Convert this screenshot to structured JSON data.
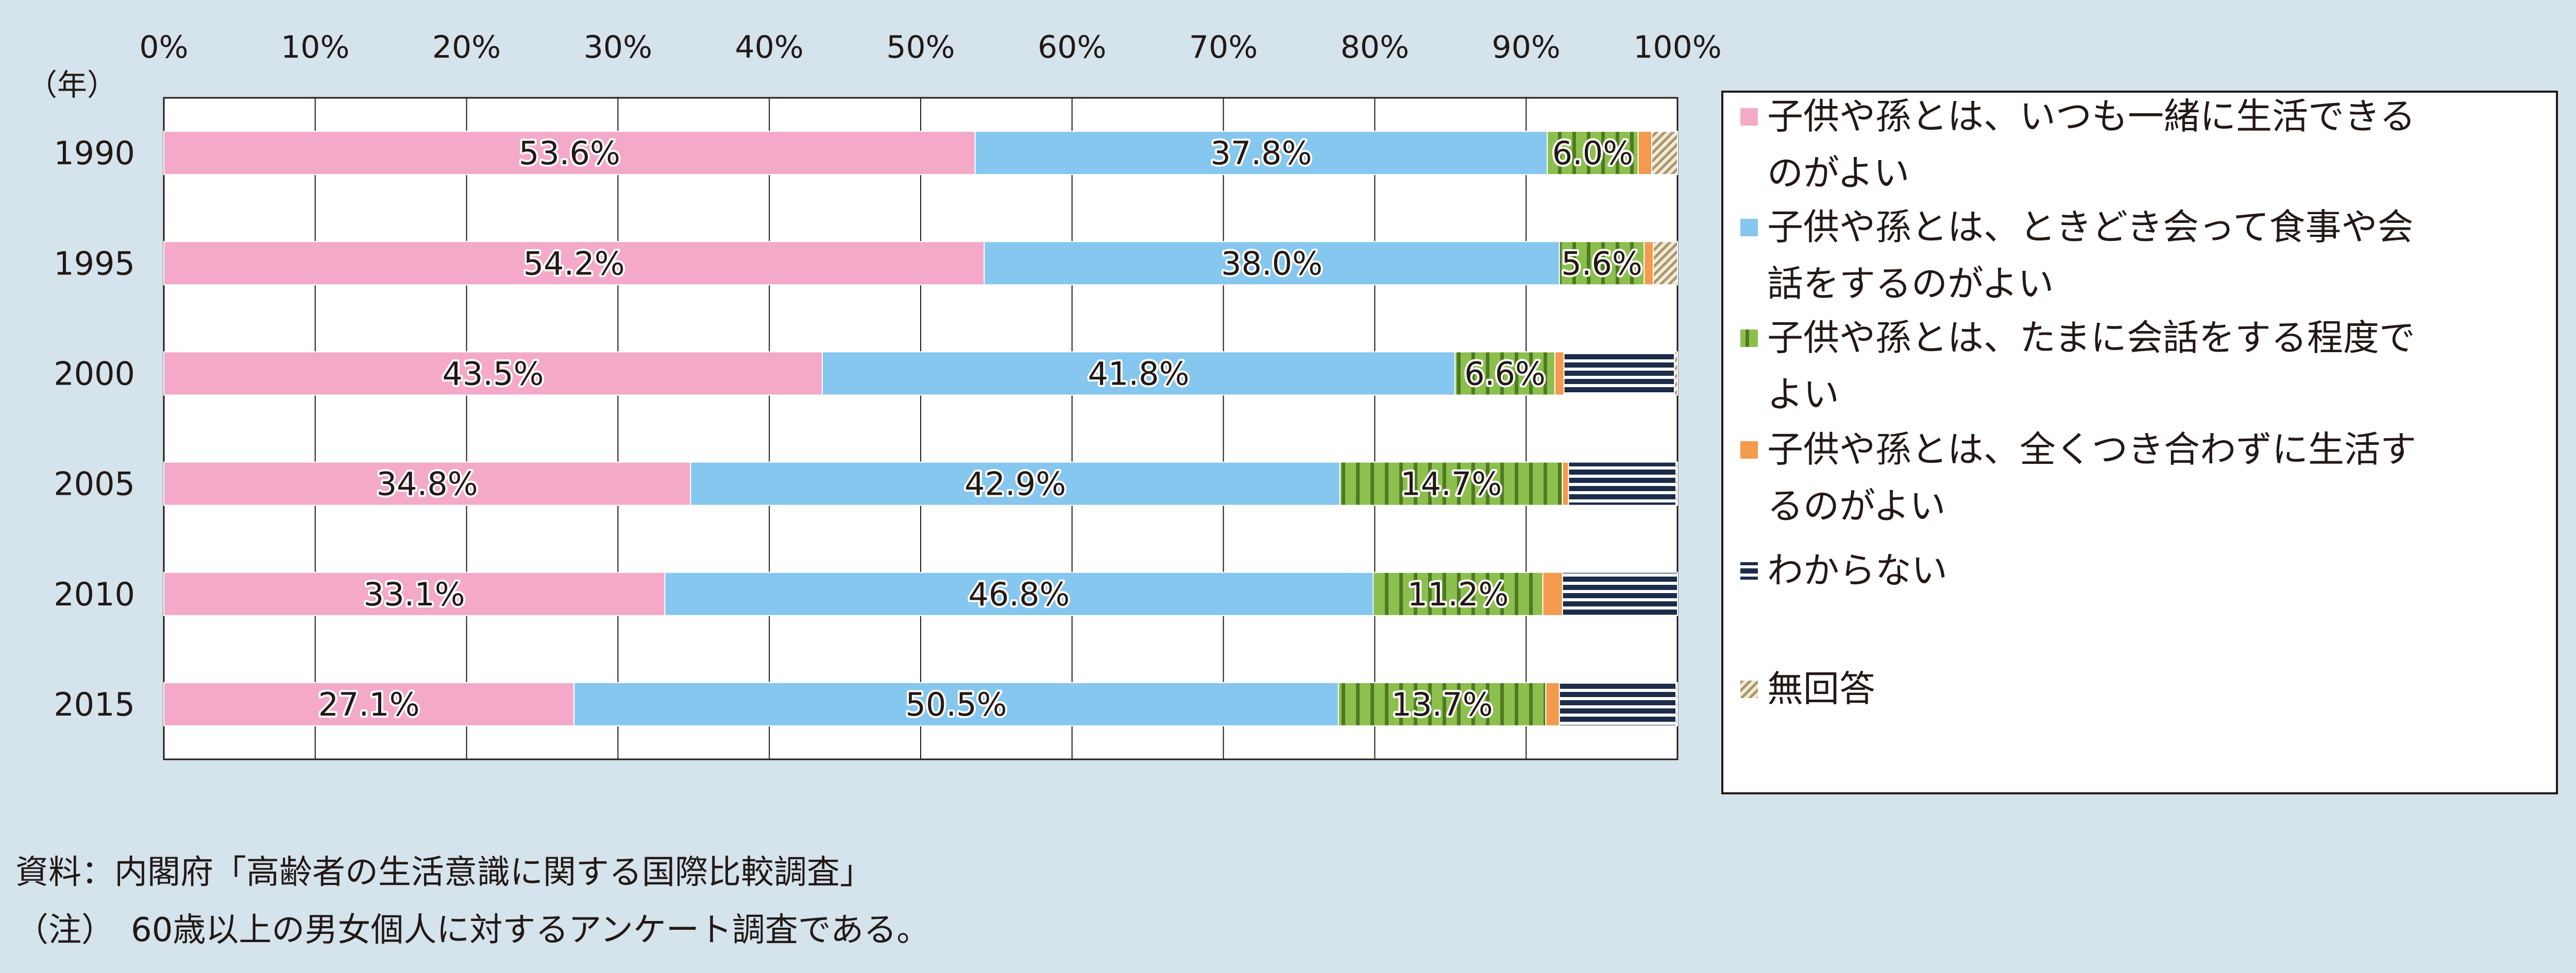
{
  "chart_data": {
    "type": "bar",
    "orientation": "horizontal",
    "stacked": true,
    "ylabel": "（年）",
    "categories": [
      "1990",
      "1995",
      "2000",
      "2005",
      "2010",
      "2015"
    ],
    "x_ticks": [
      "0%",
      "10%",
      "20%",
      "30%",
      "40%",
      "50%",
      "60%",
      "70%",
      "80%",
      "90%",
      "100%"
    ],
    "xlim": [
      0,
      100
    ],
    "grid": true,
    "legend_position": "right",
    "series": [
      {
        "name": "子供や孫とは、いつも一緒に生活できるのがよい",
        "legend_lines": [
          "子供や孫とは、いつも一緒に生活できる",
          "のがよい"
        ],
        "color": "#f4a9c8",
        "pattern": "solid",
        "values": [
          53.6,
          54.2,
          43.5,
          34.8,
          33.1,
          27.1
        ],
        "labels": [
          "53.6%",
          "54.2%",
          "43.5%",
          "34.8%",
          "33.1%",
          "27.1%"
        ]
      },
      {
        "name": "子供や孫とは、ときどき会って食事や会話をするのがよい",
        "legend_lines": [
          "子供や孫とは、ときどき会って食事や会",
          "話をするのがよい"
        ],
        "color": "#85c7ee",
        "pattern": "solid",
        "values": [
          37.8,
          38.0,
          41.8,
          42.9,
          46.8,
          50.5
        ],
        "labels": [
          "37.8%",
          "38.0%",
          "41.8%",
          "42.9%",
          "46.8%",
          "50.5%"
        ]
      },
      {
        "name": "子供や孫とは、たまに会話をする程度でよい",
        "legend_lines": [
          "子供や孫とは、たまに会話をする程度で",
          "よい"
        ],
        "color": "#8cbf4e",
        "pattern": "vertical-stripes",
        "values": [
          6.0,
          5.6,
          6.6,
          14.7,
          11.2,
          13.7
        ],
        "labels": [
          "6.0%",
          "5.6%",
          "6.6%",
          "14.7%",
          "11.2%",
          "13.7%"
        ]
      },
      {
        "name": "子供や孫とは、全くつき合わずに生活するのがよい",
        "legend_lines": [
          "子供や孫とは、全くつき合わずに生活す",
          "るのがよい"
        ],
        "color": "#f39a4c",
        "pattern": "solid",
        "values": [
          0.9,
          0.6,
          0.6,
          0.4,
          1.3,
          0.9
        ],
        "labels": [
          "",
          "",
          "",
          "",
          "",
          ""
        ]
      },
      {
        "name": "わからない",
        "legend_lines": [
          "わからない"
        ],
        "color": "#1c2c4a",
        "pattern": "horizontal-stripes",
        "values": [
          0.0,
          0.0,
          7.3,
          7.1,
          7.6,
          7.7
        ],
        "labels": [
          "",
          "",
          "",
          "",
          "",
          ""
        ]
      },
      {
        "name": "無回答",
        "legend_lines": [
          "無回答"
        ],
        "color": "#a8966e",
        "pattern": "diagonal-hatch",
        "values": [
          1.7,
          1.6,
          0.2,
          0.1,
          0.0,
          0.1
        ],
        "labels": [
          "",
          "",
          "",
          "",
          "",
          ""
        ]
      }
    ]
  },
  "footnotes": [
    "資料：内閣府「高齢者の生活意識に関する国際比較調査」",
    "（注）　60歳以上の男女個人に対するアンケート調査である。"
  ]
}
